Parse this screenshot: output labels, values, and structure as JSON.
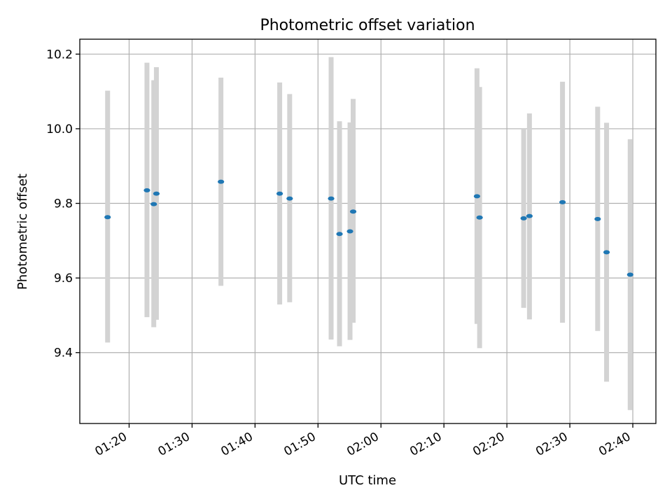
{
  "chart_data": {
    "type": "scatter",
    "title": "Photometric offset variation",
    "xlabel": "UTC time",
    "ylabel": "Photometric offset",
    "x_ticks": [
      "01:20",
      "01:30",
      "01:40",
      "01:50",
      "02:00",
      "02:10",
      "02:20",
      "02:30",
      "02:40"
    ],
    "y_ticks": [
      9.4,
      9.6,
      9.8,
      10.0,
      10.2
    ],
    "xlim": [
      "01:12:10",
      "02:43:40"
    ],
    "ylim": [
      9.21,
      10.24
    ],
    "grid": true,
    "marker_color": "#1f77b4",
    "errorbar_color": "#d3d3d3",
    "points": [
      {
        "time": "01:16:35",
        "offset": 9.763,
        "low": 9.427,
        "high": 10.102
      },
      {
        "time": "01:22:50",
        "offset": 9.835,
        "low": 9.495,
        "high": 10.177
      },
      {
        "time": "01:23:55",
        "offset": 9.798,
        "low": 9.468,
        "high": 10.13
      },
      {
        "time": "01:24:20",
        "offset": 9.826,
        "low": 9.488,
        "high": 10.165
      },
      {
        "time": "01:34:35",
        "offset": 9.858,
        "low": 9.579,
        "high": 10.137
      },
      {
        "time": "01:43:55",
        "offset": 9.826,
        "low": 9.529,
        "high": 10.124
      },
      {
        "time": "01:45:30",
        "offset": 9.813,
        "low": 9.535,
        "high": 10.093
      },
      {
        "time": "01:52:05",
        "offset": 9.813,
        "low": 9.435,
        "high": 10.192
      },
      {
        "time": "01:53:25",
        "offset": 9.718,
        "low": 9.417,
        "high": 10.02
      },
      {
        "time": "01:55:05",
        "offset": 9.725,
        "low": 9.434,
        "high": 10.017
      },
      {
        "time": "01:55:35",
        "offset": 9.778,
        "low": 9.48,
        "high": 10.08
      },
      {
        "time": "02:15:15",
        "offset": 9.819,
        "low": 9.477,
        "high": 10.162
      },
      {
        "time": "02:15:40",
        "offset": 9.762,
        "low": 9.412,
        "high": 10.112
      },
      {
        "time": "02:22:40",
        "offset": 9.76,
        "low": 9.52,
        "high": 10.0
      },
      {
        "time": "02:23:35",
        "offset": 9.766,
        "low": 9.489,
        "high": 10.041
      },
      {
        "time": "02:28:50",
        "offset": 9.803,
        "low": 9.48,
        "high": 10.126
      },
      {
        "time": "02:34:25",
        "offset": 9.758,
        "low": 9.458,
        "high": 10.059
      },
      {
        "time": "02:35:50",
        "offset": 9.669,
        "low": 9.322,
        "high": 10.016
      },
      {
        "time": "02:39:35",
        "offset": 9.609,
        "low": 9.246,
        "high": 9.972
      }
    ]
  }
}
